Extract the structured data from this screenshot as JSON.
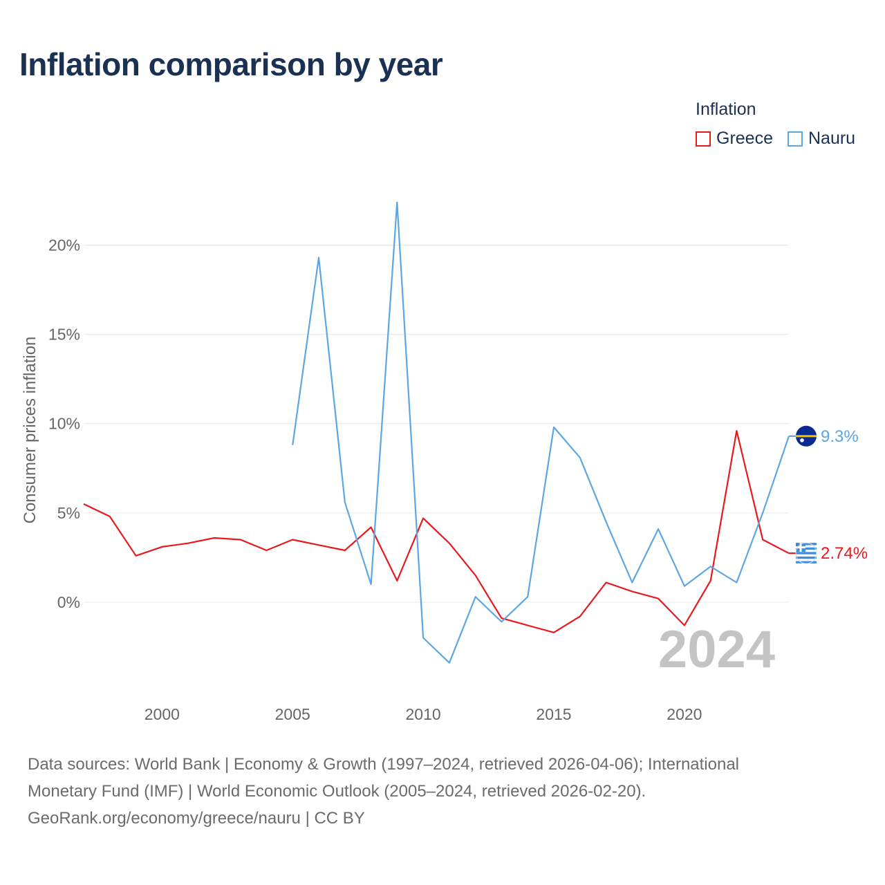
{
  "title": "Inflation comparison by year",
  "legend": {
    "title": "Inflation",
    "items": [
      {
        "label": "Greece",
        "color": "#e8181d"
      },
      {
        "label": "Nauru",
        "color": "#5ca6e3"
      }
    ]
  },
  "footer": {
    "line1": "Data sources: World Bank | Economy & Growth (1997–2024, retrieved 2026-04-06); International",
    "line2": "Monetary Fund (IMF) | World Economic Outlook (2005–2024, retrieved 2026-02-20).",
    "line3": "GeoRank.org/economy/greece/nauru | CC BY"
  },
  "chart_data": {
    "type": "line",
    "title": "Inflation comparison by year",
    "xlabel": "",
    "ylabel": "Consumer prices inflation",
    "xlim": [
      1997,
      2024
    ],
    "ylim": [
      -5,
      22.5
    ],
    "x_ticks": [
      2000,
      2005,
      2010,
      2015,
      2020
    ],
    "y_ticks": [
      0,
      5,
      10,
      15,
      20
    ],
    "y_tick_labels": [
      "0%",
      "5%",
      "10%",
      "15%",
      "20%"
    ],
    "grid": true,
    "year_watermark": "2024",
    "series": [
      {
        "name": "Greece",
        "color": "#e8181d",
        "end_label": "2.74%",
        "points": [
          [
            1997,
            5.5
          ],
          [
            1998,
            4.8
          ],
          [
            1999,
            2.6
          ],
          [
            2000,
            3.1
          ],
          [
            2001,
            3.3
          ],
          [
            2002,
            3.6
          ],
          [
            2003,
            3.5
          ],
          [
            2004,
            2.9
          ],
          [
            2005,
            3.5
          ],
          [
            2006,
            3.2
          ],
          [
            2007,
            2.9
          ],
          [
            2008,
            4.2
          ],
          [
            2009,
            1.2
          ],
          [
            2010,
            4.7
          ],
          [
            2011,
            3.3
          ],
          [
            2012,
            1.5
          ],
          [
            2013,
            -0.9
          ],
          [
            2014,
            -1.3
          ],
          [
            2015,
            -1.7
          ],
          [
            2016,
            -0.8
          ],
          [
            2017,
            1.1
          ],
          [
            2018,
            0.6
          ],
          [
            2019,
            0.2
          ],
          [
            2020,
            -1.3
          ],
          [
            2021,
            1.2
          ],
          [
            2022,
            9.6
          ],
          [
            2023,
            3.5
          ],
          [
            2024,
            2.74
          ]
        ]
      },
      {
        "name": "Nauru",
        "color": "#5ca6e3",
        "end_label": "9.3%",
        "points": [
          [
            2005,
            8.8
          ],
          [
            2006,
            19.3
          ],
          [
            2007,
            5.6
          ],
          [
            2008,
            1.0
          ],
          [
            2009,
            22.4
          ],
          [
            2010,
            -2.0
          ],
          [
            2011,
            -3.4
          ],
          [
            2012,
            0.3
          ],
          [
            2013,
            -1.1
          ],
          [
            2014,
            0.3
          ],
          [
            2015,
            9.8
          ],
          [
            2016,
            8.1
          ],
          [
            2017,
            4.5
          ],
          [
            2018,
            1.1
          ],
          [
            2019,
            4.1
          ],
          [
            2020,
            0.9
          ],
          [
            2021,
            2.0
          ],
          [
            2022,
            1.1
          ],
          [
            2023,
            5.0
          ],
          [
            2024,
            9.3
          ]
        ]
      }
    ]
  }
}
